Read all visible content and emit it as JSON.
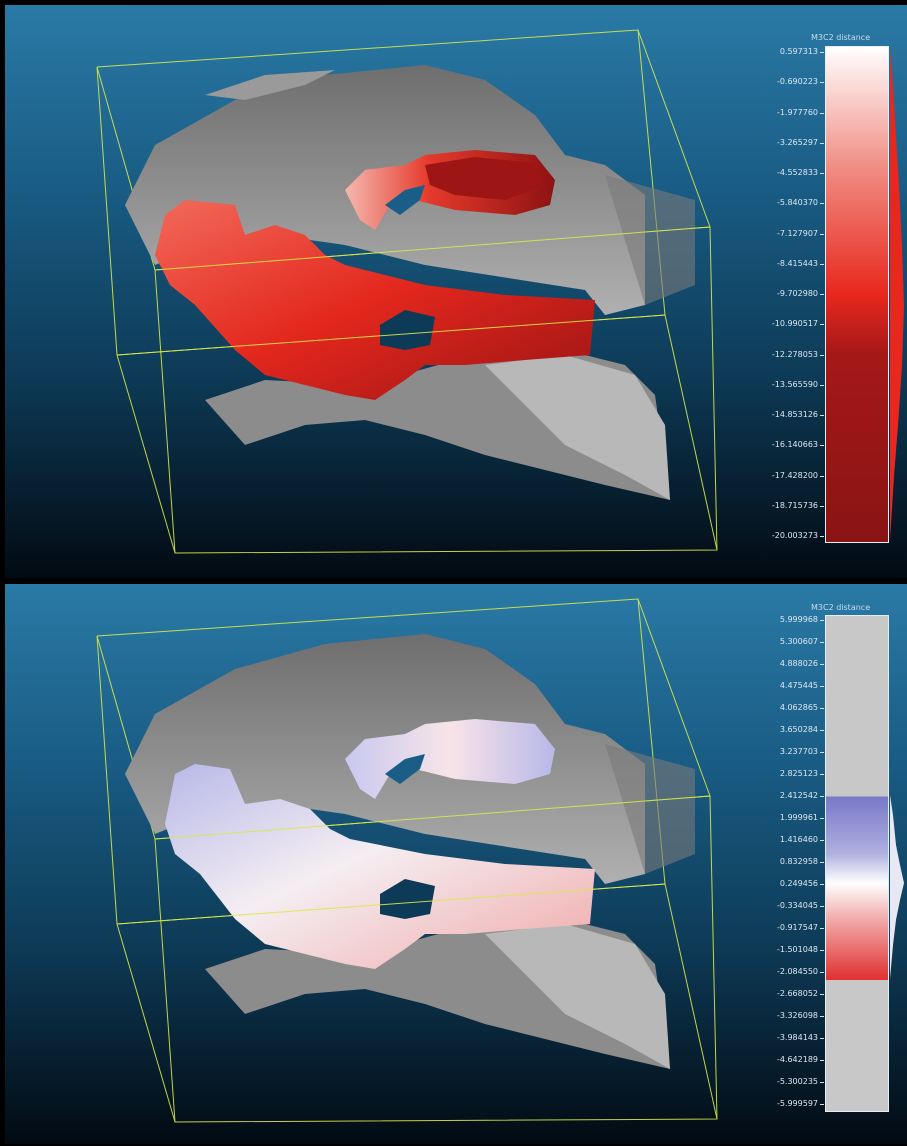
{
  "top_panel": {
    "title": "M3C2 distance",
    "ticks": [
      "0.597313",
      "-0.690223",
      "-1.977760",
      "-3.265297",
      "-4.552833",
      "-5.840370",
      "-7.127907",
      "-8.415443",
      "-9.702980",
      "-10.990517",
      "-12.278053",
      "-13.565590",
      "-14.853126",
      "-16.140663",
      "-17.428200",
      "-18.715736",
      "-20.003273"
    ],
    "scale_colors": {
      "top": "#ffffff",
      "mid": "#e8281e",
      "bottom": "#8a1414"
    }
  },
  "bottom_panel": {
    "title": "M3C2 distance",
    "ticks": [
      "5.999968",
      "5.300607",
      "4.888026",
      "4.475445",
      "4.062865",
      "3.650284",
      "3.237703",
      "2.825123",
      "2.412542",
      "1.999961",
      "1.416460",
      "0.832958",
      "0.249456",
      "-0.334045",
      "-0.917547",
      "-1.501048",
      "-2.084550",
      "-2.668052",
      "-3.326098",
      "-3.984143",
      "-4.642189",
      "-5.300235",
      "-5.999597"
    ],
    "scale_colors": {
      "out_of_range": "#c8c8c8",
      "positive": "#7878c8",
      "zero": "#ffffff",
      "negative": "#e03030"
    }
  },
  "bounding_box_color": "#d8e84a",
  "terrain_color": "#8a8a8a"
}
